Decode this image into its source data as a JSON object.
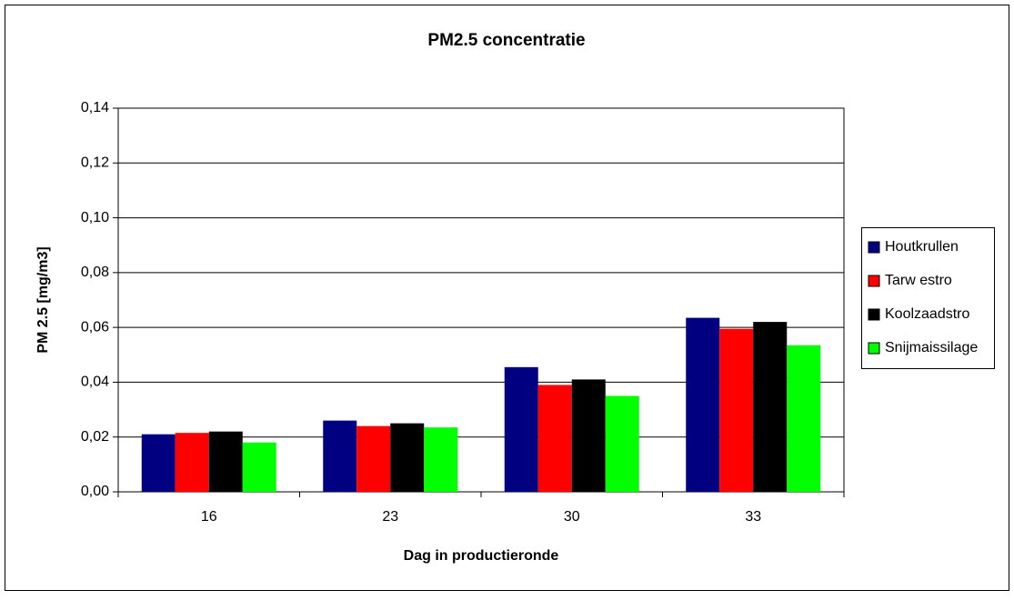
{
  "chart_data": {
    "type": "bar",
    "title": "PM2.5 concentratie",
    "x_label": "Dag in productieronde",
    "y_label": "PM 2.5 [mg/m3]",
    "categories": [
      "16",
      "23",
      "30",
      "33"
    ],
    "series": [
      {
        "name": "Houtkrullen",
        "color": "#000080",
        "values": [
          0.021,
          0.026,
          0.0455,
          0.0635
        ]
      },
      {
        "name": "Tarw estro",
        "color": "#ff0000",
        "values": [
          0.0215,
          0.024,
          0.039,
          0.0595
        ]
      },
      {
        "name": "Koolzaadstro",
        "color": "#000000",
        "values": [
          0.022,
          0.025,
          0.041,
          0.062
        ]
      },
      {
        "name": "Snijmaissilage",
        "color": "#00ff00",
        "values": [
          0.018,
          0.0235,
          0.035,
          0.0535
        ]
      }
    ],
    "ylim": [
      0,
      0.14
    ],
    "yticks": [
      {
        "value": 0,
        "label": "0,00"
      },
      {
        "value": 0.02,
        "label": "0,02"
      },
      {
        "value": 0.04,
        "label": "0,04"
      },
      {
        "value": 0.06,
        "label": "0,06"
      },
      {
        "value": 0.08,
        "label": "0,08"
      },
      {
        "value": 0.1,
        "label": "0,10"
      },
      {
        "value": 0.12,
        "label": "0,12"
      },
      {
        "value": 0.14,
        "label": "0,14"
      }
    ],
    "grid": true,
    "legend_position": "right"
  }
}
